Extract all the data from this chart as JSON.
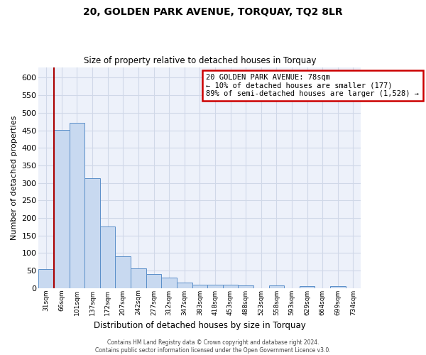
{
  "title": "20, GOLDEN PARK AVENUE, TORQUAY, TQ2 8LR",
  "subtitle": "Size of property relative to detached houses in Torquay",
  "xlabel": "Distribution of detached houses by size in Torquay",
  "ylabel": "Number of detached properties",
  "bar_color": "#c8d9f0",
  "bar_edge_color": "#5b8fc9",
  "background_color": "#edf1fa",
  "grid_color": "#d0d8e8",
  "categories": [
    "31sqm",
    "66sqm",
    "101sqm",
    "137sqm",
    "172sqm",
    "207sqm",
    "242sqm",
    "277sqm",
    "312sqm",
    "347sqm",
    "383sqm",
    "418sqm",
    "453sqm",
    "488sqm",
    "523sqm",
    "558sqm",
    "593sqm",
    "629sqm",
    "664sqm",
    "699sqm",
    "734sqm"
  ],
  "values": [
    54,
    451,
    471,
    313,
    175,
    90,
    57,
    41,
    30,
    16,
    10,
    10,
    10,
    7,
    0,
    8,
    0,
    5,
    0,
    5,
    0
  ],
  "ylim": [
    0,
    630
  ],
  "yticks": [
    0,
    50,
    100,
    150,
    200,
    250,
    300,
    350,
    400,
    450,
    500,
    550,
    600
  ],
  "property_line_x": 0.5,
  "annotation_text": "20 GOLDEN PARK AVENUE: 78sqm\n← 10% of detached houses are smaller (177)\n89% of semi-detached houses are larger (1,528) →",
  "annotation_box_color": "white",
  "annotation_box_edge_color": "#cc0000",
  "footer_line1": "Contains HM Land Registry data © Crown copyright and database right 2024.",
  "footer_line2": "Contains public sector information licensed under the Open Government Licence v3.0."
}
